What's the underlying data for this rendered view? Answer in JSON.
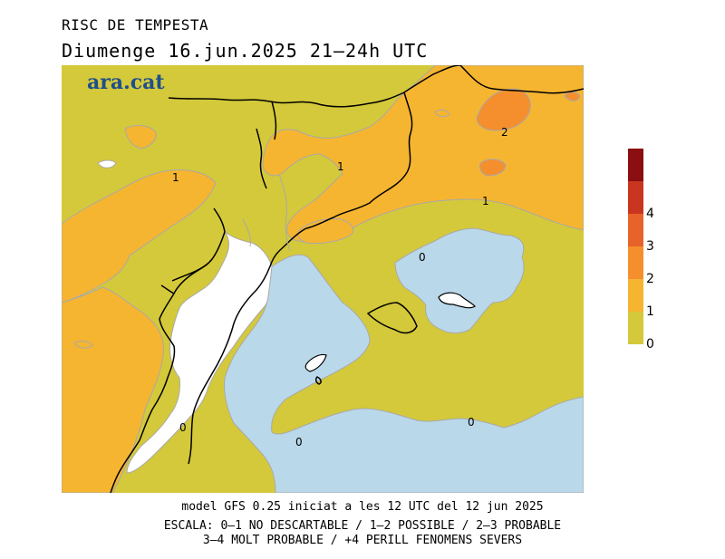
{
  "title": "RISC DE TEMPESTA",
  "subtitle": "Diumenge  16.jun.2025 21–24h UTC",
  "logo": "ara.cat",
  "footer": {
    "line1": "model GFS 0.25 iniciat a les 12 UTC del 12 jun 2025",
    "line2": "ESCALA: 0–1 NO DESCARTABLE / 1–2 POSSIBLE / 2–3 PROBABLE",
    "line3": "3–4 MOLT PROBABLE / +4 PERILL FENOMENS SEVERS"
  },
  "legend": {
    "levels": [
      {
        "label": "0",
        "color": "#d4c93a"
      },
      {
        "label": "1",
        "color": "#f6b530"
      },
      {
        "label": "2",
        "color": "#f58f2e"
      },
      {
        "label": "3",
        "color": "#e8632a"
      },
      {
        "label": "4",
        "color": "#c9351e"
      },
      {
        "label": "",
        "color": "#8b0f10"
      }
    ]
  },
  "colors": {
    "level_0_1": "#d4c93a",
    "level_1_2": "#f6b530",
    "level_2_3": "#f58f2e",
    "sea_no_risk": "#b9d8e9",
    "land_no_data": "#ffffff",
    "borders": "#000000"
  },
  "map_labels": {
    "c1_west": "1",
    "c1_center": "1",
    "c1_east": "1",
    "c2_north": "2",
    "c0_balearic": "0",
    "c0_south": "0",
    "c0_southwest": "0",
    "c0_coast": "0"
  }
}
